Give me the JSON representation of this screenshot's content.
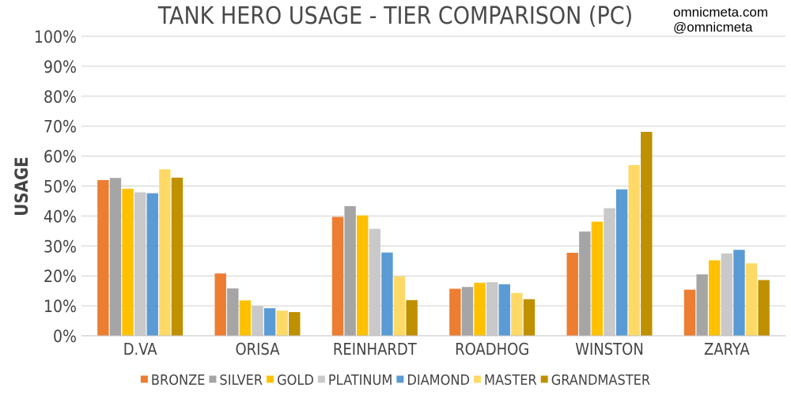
{
  "watermark": {
    "line1": "omnicmeta.com",
    "line2": "@omnicmeta"
  },
  "chart_data": {
    "type": "bar",
    "title": "TANK HERO USAGE - TIER COMPARISON (PC)",
    "xlabel": "",
    "ylabel": "USAGE",
    "ylim": [
      0,
      100
    ],
    "yticks": [
      "0%",
      "10%",
      "20%",
      "30%",
      "40%",
      "50%",
      "60%",
      "70%",
      "80%",
      "90%",
      "100%"
    ],
    "grid": true,
    "legend_position": "bottom",
    "categories": [
      "D.VA",
      "ORISA",
      "REINHARDT",
      "ROADHOG",
      "WINSTON",
      "ZARYA"
    ],
    "series": [
      {
        "name": "BRONZE",
        "color": "#ED7D31",
        "values": [
          52,
          20.8,
          39.7,
          15.7,
          27.7,
          15.4
        ]
      },
      {
        "name": "SILVER",
        "color": "#A5A5A5",
        "values": [
          52.7,
          15.8,
          43.3,
          16.3,
          34.8,
          20.5
        ]
      },
      {
        "name": "GOLD",
        "color": "#FFC000",
        "values": [
          49.1,
          11.8,
          40.2,
          17.7,
          38.1,
          25.2
        ]
      },
      {
        "name": "PLATINUM",
        "color": "#C9C9C9",
        "values": [
          47.9,
          10,
          35.7,
          17.9,
          42.6,
          27.5
        ]
      },
      {
        "name": "DIAMOND",
        "color": "#5B9BD5",
        "values": [
          47.6,
          9.2,
          27.8,
          17.2,
          48.9,
          28.7
        ]
      },
      {
        "name": "MASTER",
        "color": "#FFD966",
        "values": [
          55.6,
          8.4,
          19.8,
          14.3,
          57,
          24.2
        ]
      },
      {
        "name": "GRANDMASTER",
        "color": "#BF9000",
        "values": [
          52.8,
          7.9,
          11.9,
          12.2,
          68.1,
          18.6
        ]
      }
    ]
  }
}
